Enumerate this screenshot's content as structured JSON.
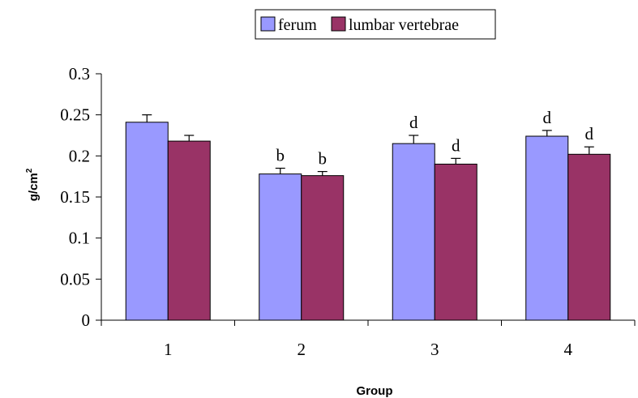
{
  "chart_data": {
    "type": "bar",
    "categories": [
      "1",
      "2",
      "3",
      "4"
    ],
    "series": [
      {
        "name": "ferum",
        "color": "#9999ff",
        "values": [
          0.241,
          0.178,
          0.215,
          0.224
        ],
        "errors": [
          0.009,
          0.007,
          0.01,
          0.007
        ],
        "annotations": [
          "",
          "b",
          "d",
          "d"
        ]
      },
      {
        "name": "lumbar vertebrae",
        "color": "#993366",
        "values": [
          0.218,
          0.176,
          0.19,
          0.202
        ],
        "errors": [
          0.007,
          0.005,
          0.007,
          0.009
        ],
        "annotations": [
          "",
          "b",
          "d",
          "d"
        ]
      }
    ],
    "xlabel": "Group",
    "ylabel_base": "g/cm",
    "ylabel_sup": "2",
    "ylim": [
      0,
      0.3
    ],
    "yticks": [
      "0",
      "0.05",
      "0.1",
      "0.15",
      "0.2",
      "0.25",
      "0.3"
    ],
    "grid": false,
    "legend_position": "top-center"
  }
}
